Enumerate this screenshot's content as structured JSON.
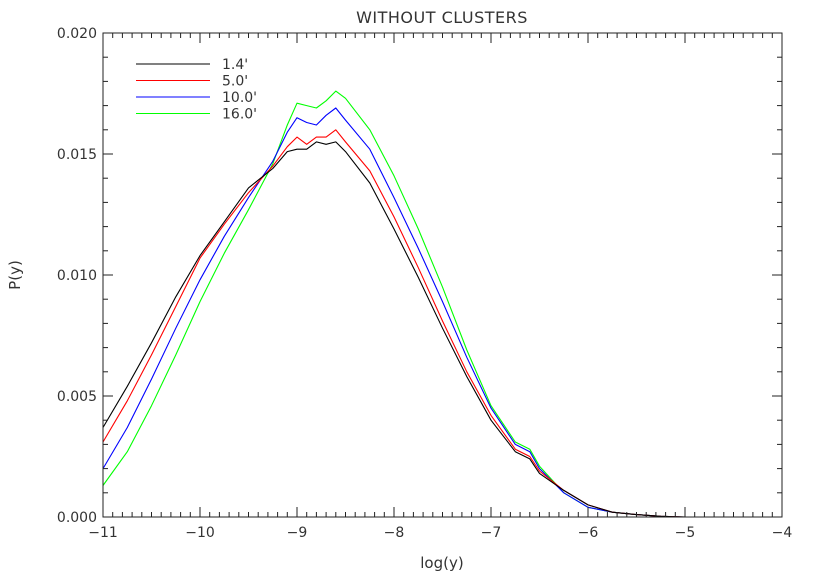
{
  "chart_data": {
    "type": "line",
    "title": "WITHOUT CLUSTERS",
    "xlabel": "log(y)",
    "ylabel": "P(y)",
    "xlim": [
      -11,
      -4
    ],
    "ylim": [
      0,
      0.02
    ],
    "x_ticks": [
      -11,
      -10,
      -9,
      -8,
      -7,
      -6,
      -5,
      -4
    ],
    "x_tick_labels": [
      "−11",
      "−10",
      "−9",
      "−8",
      "−7",
      "−6",
      "−5",
      "−4"
    ],
    "y_ticks": [
      0,
      0.005,
      0.01,
      0.015,
      0.02
    ],
    "y_tick_labels": [
      "0.000",
      "0.005",
      "0.010",
      "0.015",
      "0.020"
    ],
    "grid": false,
    "legend_position": "top-left",
    "series": [
      {
        "name": "1.4'",
        "color": "#000000",
        "x": [
          -11.0,
          -10.75,
          -10.5,
          -10.25,
          -10.0,
          -9.75,
          -9.5,
          -9.25,
          -9.1,
          -9.0,
          -8.9,
          -8.8,
          -8.7,
          -8.6,
          -8.5,
          -8.25,
          -8.0,
          -7.75,
          -7.5,
          -7.25,
          -7.0,
          -6.75,
          -6.6,
          -6.5,
          -6.25,
          -6.0,
          -5.75,
          -5.5,
          -5.25,
          -5.0,
          -4.5,
          -4.0
        ],
        "y": [
          0.0037,
          0.0054,
          0.0072,
          0.0091,
          0.0108,
          0.0122,
          0.0136,
          0.0144,
          0.0151,
          0.0152,
          0.0152,
          0.0155,
          0.0154,
          0.0155,
          0.0151,
          0.0138,
          0.0119,
          0.0099,
          0.0078,
          0.0058,
          0.004,
          0.0027,
          0.0024,
          0.0018,
          0.0011,
          0.0005,
          0.0002,
          0.0001,
          3e-05,
          0.0,
          0.0,
          0.0
        ]
      },
      {
        "name": "5.0'",
        "color": "#ff0000",
        "x": [
          -11.0,
          -10.75,
          -10.5,
          -10.25,
          -10.0,
          -9.75,
          -9.5,
          -9.25,
          -9.1,
          -9.0,
          -8.9,
          -8.8,
          -8.7,
          -8.6,
          -8.5,
          -8.25,
          -8.0,
          -7.75,
          -7.5,
          -7.25,
          -7.0,
          -6.75,
          -6.6,
          -6.5,
          -6.25,
          -6.0,
          -5.75,
          -5.5,
          -5.25,
          -5.0,
          -4.5,
          -4.0
        ],
        "y": [
          0.0031,
          0.0048,
          0.0067,
          0.0087,
          0.0107,
          0.0121,
          0.0134,
          0.0145,
          0.0153,
          0.0157,
          0.0154,
          0.0157,
          0.0157,
          0.016,
          0.0155,
          0.0143,
          0.0124,
          0.0103,
          0.0081,
          0.006,
          0.0042,
          0.0028,
          0.0025,
          0.0019,
          0.0011,
          0.0005,
          0.0002,
          0.0001,
          3e-05,
          0.0,
          0.0,
          0.0
        ]
      },
      {
        "name": "10.0'",
        "color": "#0000ff",
        "x": [
          -11.0,
          -10.75,
          -10.5,
          -10.25,
          -10.0,
          -9.75,
          -9.5,
          -9.25,
          -9.1,
          -9.0,
          -8.9,
          -8.8,
          -8.7,
          -8.6,
          -8.5,
          -8.25,
          -8.0,
          -7.75,
          -7.5,
          -7.25,
          -7.0,
          -6.75,
          -6.6,
          -6.5,
          -6.25,
          -6.0,
          -5.75,
          -5.5,
          -5.25,
          -5.0,
          -4.5,
          -4.0
        ],
        "y": [
          0.002,
          0.0037,
          0.0057,
          0.0078,
          0.0098,
          0.0116,
          0.0132,
          0.0147,
          0.0159,
          0.0165,
          0.0163,
          0.0162,
          0.0166,
          0.0169,
          0.0164,
          0.0152,
          0.0132,
          0.0111,
          0.0089,
          0.0066,
          0.0045,
          0.003,
          0.0027,
          0.002,
          0.001,
          0.0004,
          0.0002,
          0.0001,
          3e-05,
          0.0,
          0.0,
          0.0
        ]
      },
      {
        "name": "16.0'",
        "color": "#00ff00",
        "x": [
          -11.0,
          -10.75,
          -10.5,
          -10.25,
          -10.0,
          -9.75,
          -9.5,
          -9.25,
          -9.1,
          -9.0,
          -8.9,
          -8.8,
          -8.7,
          -8.6,
          -8.5,
          -8.25,
          -8.0,
          -7.75,
          -7.5,
          -7.25,
          -7.0,
          -6.75,
          -6.6,
          -6.5,
          -6.25,
          -6.0,
          -5.75,
          -5.5,
          -5.25,
          -5.0,
          -4.5,
          -4.0
        ],
        "y": [
          0.0013,
          0.0027,
          0.0046,
          0.0067,
          0.0089,
          0.0109,
          0.0127,
          0.0146,
          0.0162,
          0.0171,
          0.017,
          0.0169,
          0.0172,
          0.0176,
          0.0173,
          0.016,
          0.0141,
          0.0119,
          0.0095,
          0.0069,
          0.0046,
          0.0031,
          0.0028,
          0.0021,
          0.001,
          0.0004,
          0.0002,
          0.0001,
          3e-05,
          0.0,
          0.0,
          0.0
        ]
      }
    ]
  }
}
